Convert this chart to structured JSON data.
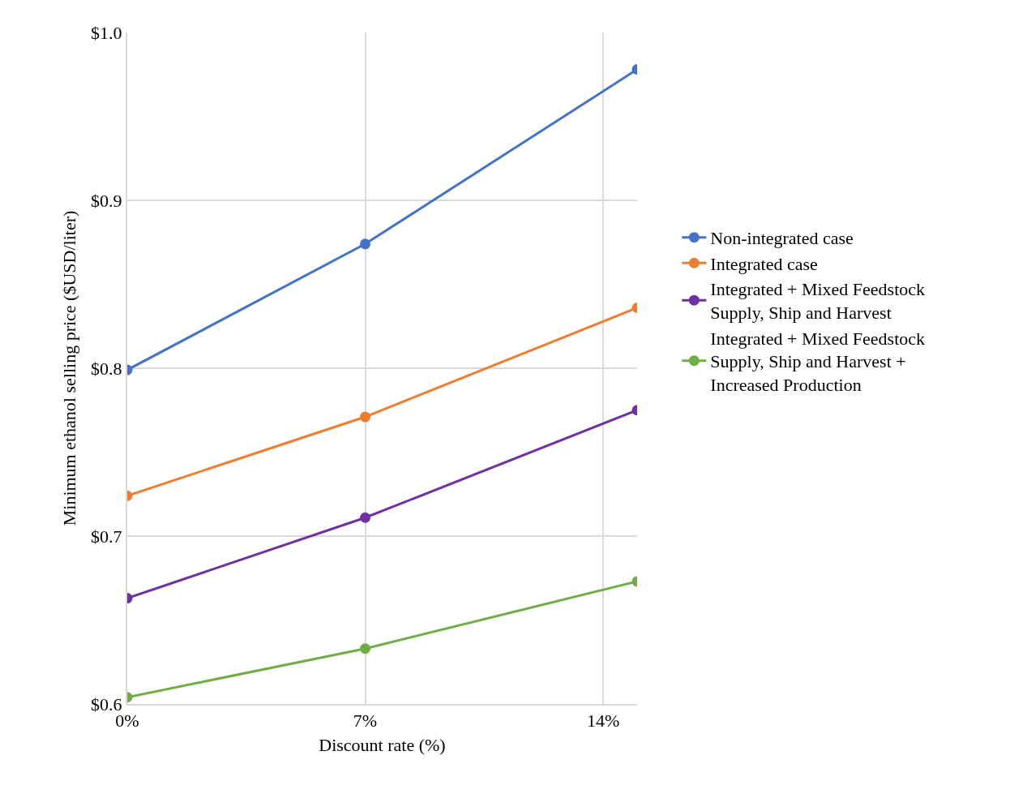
{
  "chart_data": {
    "type": "line",
    "xlabel": "Discount rate (%)",
    "ylabel": "Minimum ethanol selling price ($USD/liter)",
    "x": [
      0,
      7,
      15
    ],
    "xlim": [
      0,
      15
    ],
    "xticks": [
      {
        "value": 0,
        "label": "0%"
      },
      {
        "value": 7,
        "label": "7%"
      },
      {
        "value": 14,
        "label": "14%"
      }
    ],
    "ylim": [
      0.6,
      1.0
    ],
    "yticks": [
      {
        "value": 0.6,
        "label": "$0.6"
      },
      {
        "value": 0.7,
        "label": "$0.7"
      },
      {
        "value": 0.8,
        "label": "$0.8"
      },
      {
        "value": 0.9,
        "label": "$0.9"
      },
      {
        "value": 1.0,
        "label": "$1.0"
      }
    ],
    "grid": true,
    "legend": "right",
    "marker": "circle",
    "line_style": "solid",
    "series": [
      {
        "name": "Non-integrated case",
        "color": "#4472c4",
        "values": [
          0.799,
          0.874,
          0.978
        ]
      },
      {
        "name": "Integrated case",
        "color": "#ed7d31",
        "values": [
          0.724,
          0.771,
          0.836
        ]
      },
      {
        "name": "Integrated + Mixed Feedstock Supply, Ship and Harvest",
        "color": "#7030a0",
        "values": [
          0.663,
          0.711,
          0.775
        ]
      },
      {
        "name": "Integrated + Mixed Feedstock Supply, Ship and Harvest + Increased Production",
        "color": "#70ad47",
        "values": [
          0.604,
          0.633,
          0.673
        ]
      }
    ]
  }
}
